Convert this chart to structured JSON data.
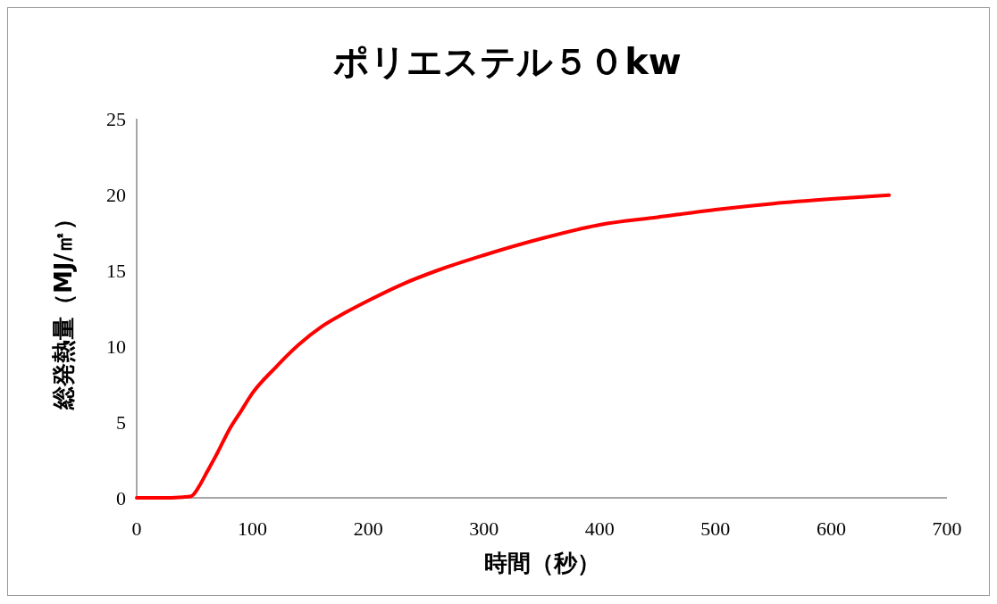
{
  "chart_data": {
    "type": "line",
    "title": "ポリエステル５０kw",
    "xlabel": "時間（秒）",
    "ylabel": "総発熱量（MJ/㎡）",
    "xlim": [
      0,
      700
    ],
    "xticks": [
      0,
      100,
      200,
      300,
      400,
      500,
      600,
      700
    ],
    "ylim": [
      0,
      25
    ],
    "yticks": [
      0,
      5,
      10,
      15,
      20,
      25
    ],
    "grid": false,
    "marker": "none",
    "line_style": "solid",
    "series": [
      {
        "color": "#ff0000",
        "x": [
          0,
          20,
          40,
          47,
          50,
          55,
          60,
          70,
          80,
          90,
          100,
          120,
          140,
          160,
          180,
          200,
          230,
          260,
          300,
          350,
          400,
          450,
          500,
          550,
          600,
          650
        ],
        "values": [
          0,
          0,
          0.05,
          0.1,
          0.3,
          0.9,
          1.6,
          3.0,
          4.5,
          5.7,
          6.9,
          8.6,
          10.1,
          11.3,
          12.2,
          13.0,
          14.1,
          15.0,
          16.0,
          17.1,
          18.0,
          18.5,
          19.0,
          19.4,
          19.7,
          19.95
        ]
      }
    ]
  }
}
